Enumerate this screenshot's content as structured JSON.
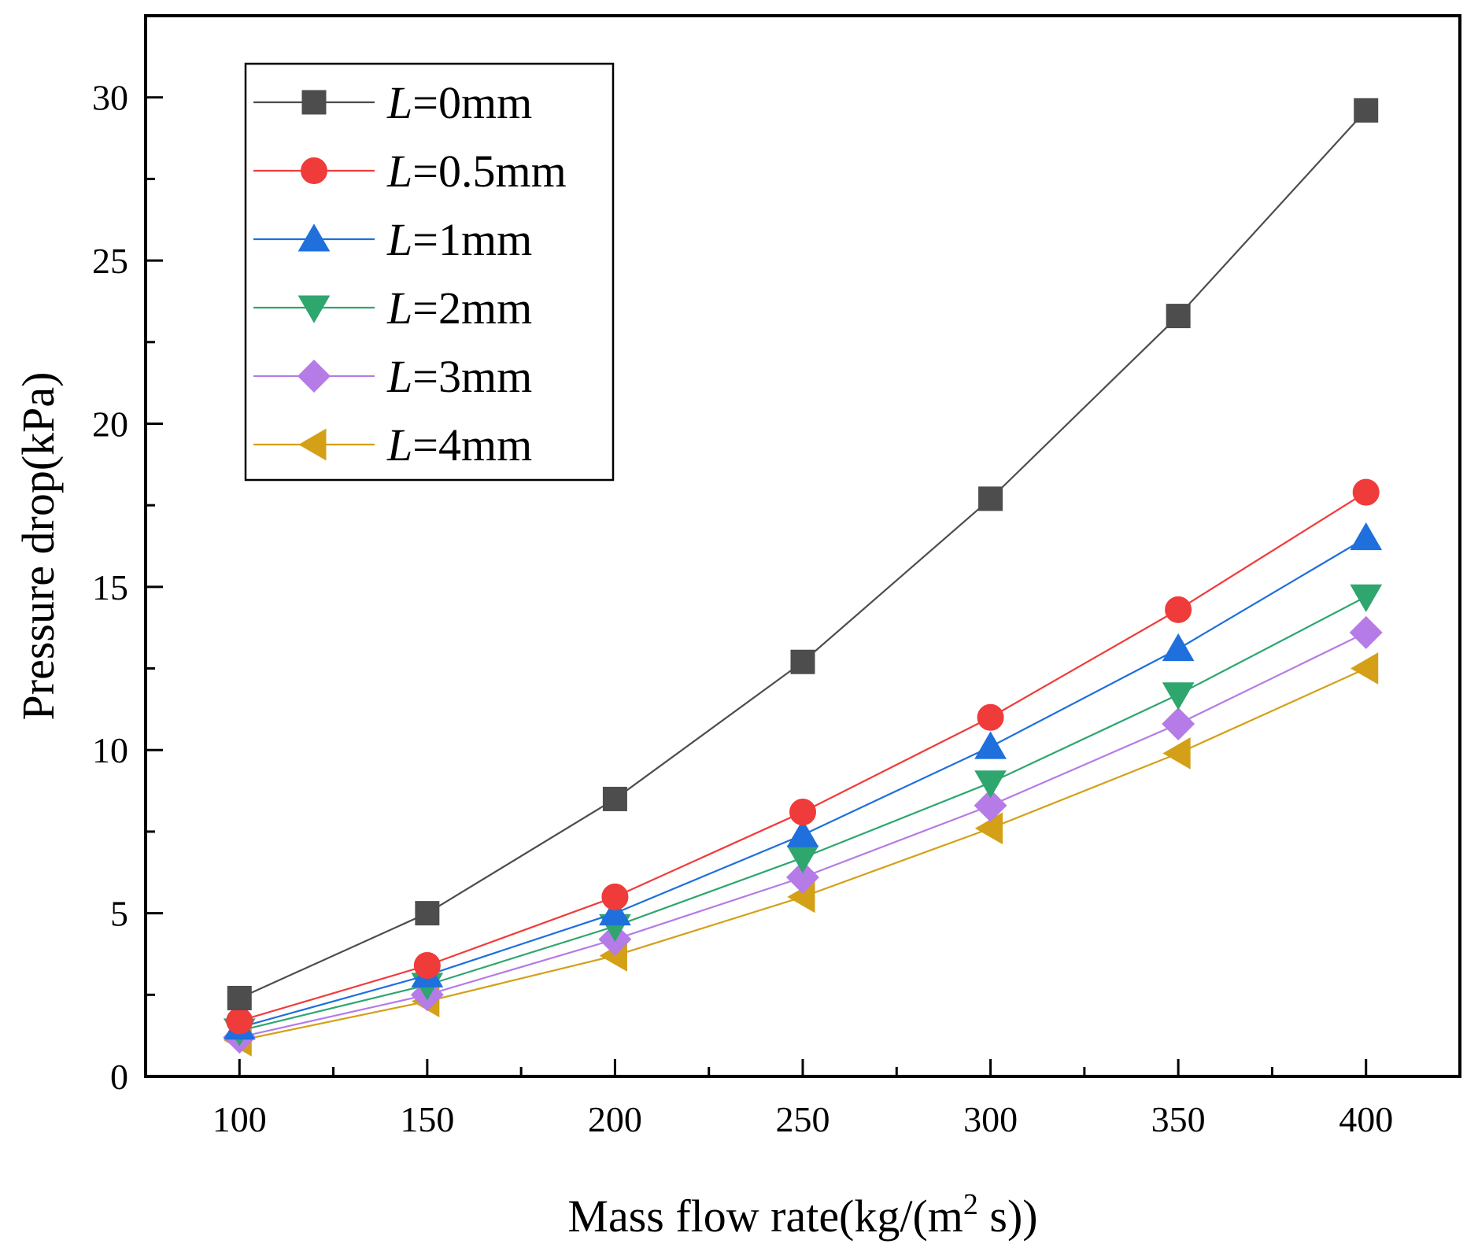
{
  "chart_data": {
    "type": "line",
    "xlabel": {
      "main": "Mass flow rate(kg/(m",
      "sup": "2",
      "tail": " s))"
    },
    "ylabel": "Pressure drop(kPa)",
    "xlim": [
      75,
      425
    ],
    "ylim": [
      0,
      32.5
    ],
    "xticks": [
      100,
      150,
      200,
      250,
      300,
      350,
      400
    ],
    "xtick_labels": [
      "100",
      "150",
      "200",
      "250",
      "300",
      "350",
      "400"
    ],
    "yticks": [
      0,
      5,
      10,
      15,
      20,
      25,
      30
    ],
    "ytick_labels": [
      "0",
      "5",
      "10",
      "15",
      "20",
      "25",
      "30"
    ],
    "grid": false,
    "legend_position": "top-left",
    "x": [
      100,
      150,
      200,
      250,
      300,
      350,
      400
    ],
    "series": [
      {
        "name": "L=0mm",
        "legend_italic": "L",
        "legend_rest": "=0mm",
        "color": "#4d4d4d",
        "marker": "square",
        "values": [
          2.4,
          5.0,
          8.5,
          12.7,
          17.7,
          23.3,
          29.6
        ]
      },
      {
        "name": "L=0.5mm",
        "legend_italic": "L",
        "legend_rest": "=0.5mm",
        "color": "#f03b3b",
        "marker": "circle",
        "values": [
          1.7,
          3.4,
          5.5,
          8.1,
          11.0,
          14.3,
          17.9
        ]
      },
      {
        "name": "L=1mm",
        "legend_italic": "L",
        "legend_rest": "=1mm",
        "color": "#1f6fdc",
        "marker": "triangle-up",
        "values": [
          1.5,
          3.1,
          5.0,
          7.4,
          10.1,
          13.1,
          16.5
        ]
      },
      {
        "name": "L=2mm",
        "legend_italic": "L",
        "legend_rest": "=2mm",
        "color": "#2ea66e",
        "marker": "triangle-down",
        "values": [
          1.4,
          2.8,
          4.6,
          6.7,
          9.0,
          11.7,
          14.7
        ]
      },
      {
        "name": "L=3mm",
        "legend_italic": "L",
        "legend_rest": "=3mm",
        "color": "#b57be6",
        "marker": "diamond",
        "values": [
          1.2,
          2.5,
          4.2,
          6.1,
          8.3,
          10.8,
          13.6
        ]
      },
      {
        "name": "L=4mm",
        "legend_italic": "L",
        "legend_rest": "=4mm",
        "color": "#d4a017",
        "marker": "triangle-left",
        "values": [
          1.1,
          2.3,
          3.7,
          5.5,
          7.6,
          9.9,
          12.5
        ]
      }
    ]
  }
}
